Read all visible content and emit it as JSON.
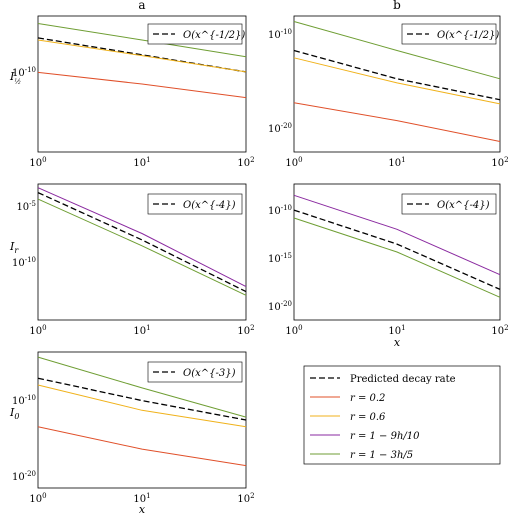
{
  "colors": {
    "predicted": "#000000",
    "r02": "#e0502a",
    "r06": "#f0b21b",
    "r9h": "#8a2aa0",
    "r3h": "#6f9e34",
    "olive": "#7a8b3a"
  },
  "legend": {
    "items": [
      {
        "key": "predicted",
        "label": "Predicted decay rate",
        "dashed": true
      },
      {
        "key": "r02",
        "label": "r = 0.2"
      },
      {
        "key": "r06",
        "label": "r = 0.6"
      },
      {
        "key": "r9h",
        "label": "r = 1 − 9h/10"
      },
      {
        "key": "r3h",
        "label": "r = 1 − 3h/5"
      }
    ]
  },
  "chart_data": [
    {
      "id": "a-top",
      "type": "line",
      "title": "a",
      "ylabel": "I_{1/2}",
      "xlabel": "",
      "xscale": "log",
      "yscale": "log",
      "xlim": [
        1,
        100
      ],
      "yticks": [
        "10^{-10}"
      ],
      "xticks": [
        "10^{0}",
        "10^{1}",
        "10^{2}"
      ],
      "annotation": "O(x^{-1/2})",
      "series": [
        {
          "key": "r3h",
          "x": [
            1,
            10,
            100
          ],
          "y": [
            0.0008,
            3e-06,
            1e-08
          ]
        },
        {
          "key": "predicted",
          "x": [
            1,
            10,
            100
          ],
          "y": [
            6e-06,
            2e-08,
            6e-11
          ]
        },
        {
          "key": "r06",
          "x": [
            1,
            10,
            100
          ],
          "y": [
            3e-06,
            1.5e-08,
            6e-11
          ]
        },
        {
          "key": "r02",
          "x": [
            1,
            10,
            100
          ],
          "y": [
            5e-11,
            1e-12,
            1e-14
          ]
        }
      ]
    },
    {
      "id": "b-top",
      "type": "line",
      "title": "b",
      "ylabel": "",
      "xlabel": "",
      "xscale": "log",
      "yscale": "log",
      "xlim": [
        1,
        100
      ],
      "yticks": [
        "10^{-10}",
        "10^{-20}"
      ],
      "xticks": [
        "10^{0}",
        "10^{1}",
        "10^{2}"
      ],
      "annotation": "O(x^{-1/2})",
      "series": [
        {
          "key": "r3h",
          "x": [
            1,
            10,
            100
          ],
          "y": [
            3e-09,
            5e-12,
            1e-14
          ]
        },
        {
          "key": "predicted",
          "x": [
            1,
            10,
            100
          ],
          "y": [
            5e-12,
            1e-14,
            1e-16
          ]
        },
        {
          "key": "r06",
          "x": [
            1,
            10,
            100
          ],
          "y": [
            1e-12,
            4e-15,
            4e-17
          ]
        },
        {
          "key": "r02",
          "x": [
            1,
            10,
            100
          ],
          "y": [
            5e-17,
            1e-18,
            1e-20
          ]
        }
      ]
    },
    {
      "id": "a-mid",
      "type": "line",
      "title": "",
      "ylabel": "I_r",
      "xlabel": "",
      "xscale": "log",
      "yscale": "log",
      "xlim": [
        1,
        100
      ],
      "yticks": [
        "10^{-5}",
        "10^{-10}"
      ],
      "xticks": [
        "10^{0}",
        "10^{1}",
        "10^{2}"
      ],
      "annotation": "O(x^{-4})",
      "series": [
        {
          "key": "r9h",
          "x": [
            1,
            10,
            100
          ],
          "y": [
            5e-05,
            1e-08,
            5e-13
          ]
        },
        {
          "key": "predicted",
          "x": [
            1,
            10,
            100
          ],
          "y": [
            2e-05,
            3e-09,
            2e-13
          ]
        },
        {
          "key": "r3h",
          "x": [
            1,
            10,
            100
          ],
          "y": [
            6e-06,
            1e-09,
            1e-13
          ]
        }
      ]
    },
    {
      "id": "b-mid",
      "type": "line",
      "title": "",
      "ylabel": "",
      "xlabel": "x",
      "xscale": "log",
      "yscale": "log",
      "xlim": [
        1,
        100
      ],
      "yticks": [
        "10^{-10}",
        "10^{-15}",
        "10^{-20}"
      ],
      "xticks": [
        "10^{0}",
        "10^{1}",
        "10^{2}"
      ],
      "annotation": "O(x^{-4})",
      "series": [
        {
          "key": "r9h",
          "x": [
            1,
            10,
            100
          ],
          "y": [
            1e-09,
            1e-12,
            1e-16
          ]
        },
        {
          "key": "predicted",
          "x": [
            1,
            10,
            100
          ],
          "y": [
            5e-11,
            5e-14,
            5e-18
          ]
        },
        {
          "key": "r3h",
          "x": [
            1,
            10,
            100
          ],
          "y": [
            1e-11,
            1e-14,
            1e-18
          ]
        }
      ]
    },
    {
      "id": "a-bot",
      "type": "line",
      "title": "",
      "ylabel": "I_0",
      "xlabel": "x",
      "xscale": "log",
      "yscale": "log",
      "xlim": [
        1,
        100
      ],
      "yticks": [
        "10^{-10}",
        "10^{-20}"
      ],
      "xticks": [
        "10^{0}",
        "10^{1}",
        "10^{2}"
      ],
      "annotation": "O(x^{-3})",
      "series": [
        {
          "key": "r3h",
          "x": [
            1,
            10,
            100
          ],
          "y": [
            3e-07,
            2e-10,
            2e-13
          ]
        },
        {
          "key": "predicted",
          "x": [
            1,
            10,
            100
          ],
          "y": [
            2e-09,
            1e-11,
            1e-13
          ]
        },
        {
          "key": "r06",
          "x": [
            1,
            10,
            100
          ],
          "y": [
            4e-10,
            1e-12,
            2e-14
          ]
        },
        {
          "key": "r02",
          "x": [
            1,
            10,
            100
          ],
          "y": [
            2e-14,
            1e-16,
            2e-18
          ]
        }
      ]
    }
  ]
}
